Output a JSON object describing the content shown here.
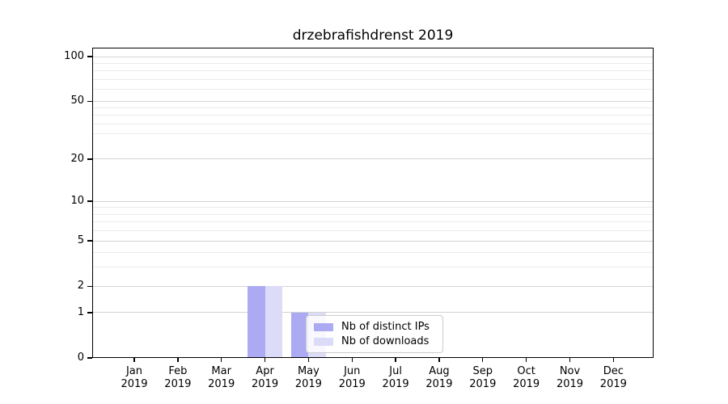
{
  "chart_data": {
    "type": "bar",
    "title": "drzebrafishdrenst 2019",
    "x_categories": [
      {
        "month": "Jan",
        "year": "2019"
      },
      {
        "month": "Feb",
        "year": "2019"
      },
      {
        "month": "Mar",
        "year": "2019"
      },
      {
        "month": "Apr",
        "year": "2019"
      },
      {
        "month": "May",
        "year": "2019"
      },
      {
        "month": "Jun",
        "year": "2019"
      },
      {
        "month": "Jul",
        "year": "2019"
      },
      {
        "month": "Aug",
        "year": "2019"
      },
      {
        "month": "Sep",
        "year": "2019"
      },
      {
        "month": "Oct",
        "year": "2019"
      },
      {
        "month": "Nov",
        "year": "2019"
      },
      {
        "month": "Dec",
        "year": "2019"
      }
    ],
    "series": [
      {
        "name": "Nb of distinct IPs",
        "color": "#abaaf2",
        "values": [
          0,
          0,
          0,
          2,
          1,
          0,
          0,
          0,
          0,
          0,
          0,
          0
        ]
      },
      {
        "name": "Nb of downloads",
        "color": "#dcdcf9",
        "values": [
          0,
          0,
          0,
          2,
          1,
          0,
          0,
          0,
          0,
          0,
          0,
          0
        ]
      }
    ],
    "y_axis": {
      "scale": "log1p",
      "ticks": [
        0,
        1,
        2,
        5,
        10,
        20,
        50,
        100
      ],
      "minor_gridlines": [
        3,
        4,
        6,
        7,
        8,
        9,
        30,
        35,
        40,
        45,
        60,
        70,
        80,
        90
      ],
      "range": [
        0,
        115
      ]
    },
    "grid": true,
    "legend": {
      "position": "lower-center"
    }
  }
}
